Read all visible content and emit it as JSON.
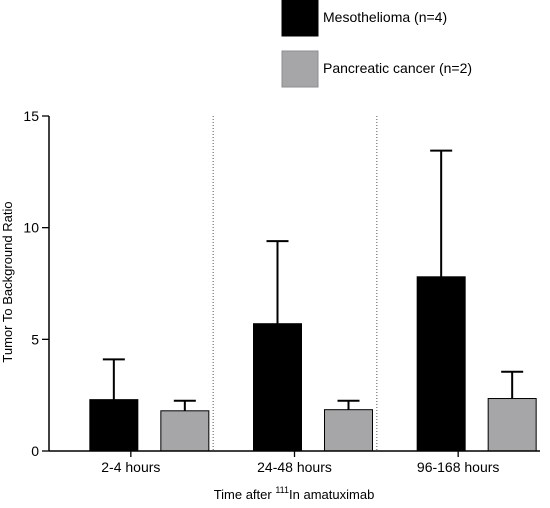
{
  "chart_data": {
    "type": "bar",
    "categories": [
      "2-4 hours",
      "24-48 hours",
      "96-168 hours"
    ],
    "series": [
      {
        "name": "Mesothelioma (n=4)",
        "color": "#000000",
        "values": [
          2.3,
          5.7,
          7.8
        ],
        "error": [
          1.8,
          3.7,
          5.65
        ]
      },
      {
        "name": "Pancreatic cancer (n=2)",
        "color": "#a6a6a8",
        "values": [
          1.8,
          1.85,
          2.35
        ],
        "error": [
          0.45,
          0.4,
          1.2
        ]
      }
    ],
    "yticks": [
      0,
      5,
      10,
      15
    ],
    "ylim": [
      0,
      15
    ],
    "ylabel": "Tumor To Background Ratio",
    "xlabel_prefix": "Time after ",
    "xlabel_sup": "111",
    "xlabel_suffix": "In amatuximab",
    "legend_position": "top-right",
    "group_separators": "dotted"
  }
}
